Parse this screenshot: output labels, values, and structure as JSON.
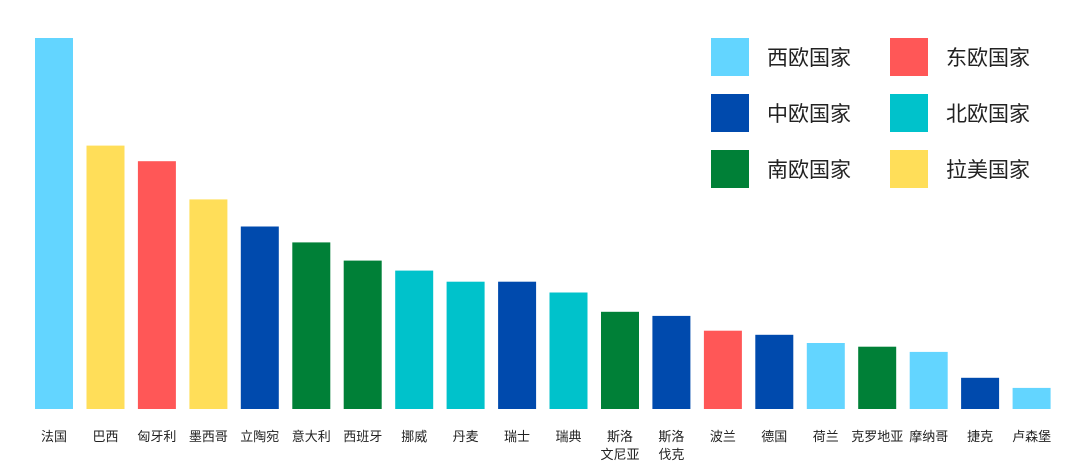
{
  "chart_data": {
    "type": "bar",
    "categories": [
      {
        "label": [
          "法国"
        ],
        "value": 100,
        "group": "west"
      },
      {
        "label": [
          "巴西"
        ],
        "value": 71,
        "group": "latam"
      },
      {
        "label": [
          "匈牙利"
        ],
        "value": 66.8,
        "group": "east"
      },
      {
        "label": [
          "墨西哥"
        ],
        "value": 56.5,
        "group": "latam"
      },
      {
        "label": [
          "立陶宛"
        ],
        "value": 49.2,
        "group": "central"
      },
      {
        "label": [
          "意大利"
        ],
        "value": 44.9,
        "group": "south"
      },
      {
        "label": [
          "西班牙"
        ],
        "value": 40,
        "group": "south"
      },
      {
        "label": [
          "挪威"
        ],
        "value": 37.3,
        "group": "north"
      },
      {
        "label": [
          "丹麦"
        ],
        "value": 34.3,
        "group": "north"
      },
      {
        "label": [
          "瑞士"
        ],
        "value": 34.3,
        "group": "central"
      },
      {
        "label": [
          "瑞典"
        ],
        "value": 31.4,
        "group": "north"
      },
      {
        "label": [
          "斯洛",
          "文尼亚"
        ],
        "value": 26.2,
        "group": "south"
      },
      {
        "label": [
          "斯洛",
          "伐克"
        ],
        "value": 25.1,
        "group": "central"
      },
      {
        "label": [
          "波兰"
        ],
        "value": 21.1,
        "group": "east"
      },
      {
        "label": [
          "德国"
        ],
        "value": 20,
        "group": "central"
      },
      {
        "label": [
          "荷兰"
        ],
        "value": 17.8,
        "group": "west"
      },
      {
        "label": [
          "克罗地亚"
        ],
        "value": 16.8,
        "group": "south"
      },
      {
        "label": [
          "摩纳哥"
        ],
        "value": 15.4,
        "group": "west"
      },
      {
        "label": [
          "捷克"
        ],
        "value": 8.4,
        "group": "central"
      },
      {
        "label": [
          "卢森堡"
        ],
        "value": 5.7,
        "group": "west"
      }
    ],
    "ylim": [
      0,
      100
    ],
    "groups": {
      "west": {
        "name": "西欧国家",
        "color": "#63D5FF"
      },
      "east": {
        "name": "东欧国家",
        "color": "#FF5757"
      },
      "central": {
        "name": "中欧国家",
        "color": "#004AAD"
      },
      "north": {
        "name": "北欧国家",
        "color": "#00C2CB"
      },
      "south": {
        "name": "南欧国家",
        "color": "#008037"
      },
      "latam": {
        "name": "拉美国家",
        "color": "#FFDE59"
      }
    },
    "legend_order": [
      "west",
      "east",
      "central",
      "north",
      "south",
      "latam"
    ],
    "legend_position": "top-right",
    "grid": false
  }
}
